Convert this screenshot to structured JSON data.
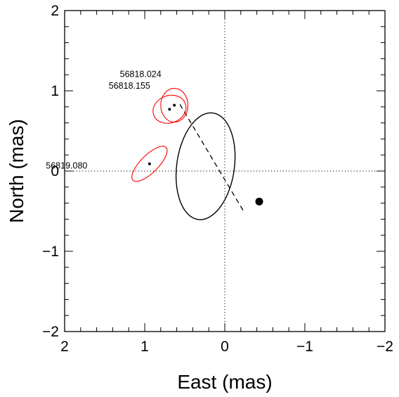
{
  "chart_data": {
    "type": "scatter",
    "xlabel": "East (mas)",
    "ylabel": "North (mas)",
    "xlim": [
      2,
      -2
    ],
    "ylim": [
      -2,
      2
    ],
    "x_ticks": [
      {
        "value": 2,
        "label": "2"
      },
      {
        "value": 1,
        "label": "1"
      },
      {
        "value": 0,
        "label": "0"
      },
      {
        "value": -1,
        "label": "−1"
      },
      {
        "value": -2,
        "label": "−2"
      }
    ],
    "y_ticks": [
      {
        "value": 2,
        "label": "2"
      },
      {
        "value": 1,
        "label": "1"
      },
      {
        "value": 0,
        "label": "0"
      },
      {
        "value": -1,
        "label": "−1"
      },
      {
        "value": -2,
        "label": "−2"
      }
    ],
    "minor_tick_step": 0.2,
    "reference_lines": [
      {
        "orientation": "vertical",
        "value": 0,
        "style": "dotted"
      },
      {
        "orientation": "horizontal",
        "value": 0,
        "style": "dotted"
      }
    ],
    "orbit": {
      "center": [
        0.24,
        0.06
      ],
      "semi_axes": [
        0.36,
        0.67
      ],
      "rotation_deg": 8,
      "color": "#000000"
    },
    "line_of_nodes": {
      "from": [
        0.56,
        0.83
      ],
      "to": [
        -0.24,
        -0.51
      ],
      "style": "dashed"
    },
    "primary": {
      "x": -0.43,
      "y": -0.38
    },
    "observations": [
      {
        "label": "56818.024",
        "x": 0.63,
        "y": 0.82,
        "error_ellipse": {
          "rx": 0.17,
          "ry": 0.21,
          "rotation_deg": 0,
          "color": "#ff0000"
        }
      },
      {
        "label": "56818.155",
        "x": 0.69,
        "y": 0.77,
        "error_ellipse": {
          "rx": 0.21,
          "ry": 0.17,
          "rotation_deg": -20,
          "color": "#ff0000"
        }
      },
      {
        "label": "56819.080",
        "x": 0.94,
        "y": 0.09,
        "error_ellipse": {
          "rx": 0.29,
          "ry": 0.11,
          "rotation_deg": -45,
          "color": "#ff0000"
        }
      }
    ]
  }
}
